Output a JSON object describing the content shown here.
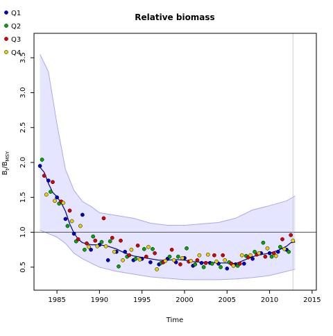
{
  "chart_data": {
    "type": "scatter",
    "title": "Relative biomass",
    "xlabel": "Time",
    "ylabel_main": "B",
    "ylabel_sub_t": "t",
    "ylabel_sub_msy": "MSY",
    "xlim": [
      1982.3,
      2015.5
    ],
    "ylim": [
      0.17,
      3.85
    ],
    "xticks": [
      1985,
      1990,
      1995,
      2000,
      2005,
      2010,
      2015
    ],
    "yticks": [
      0.5,
      1.0,
      1.5,
      2.0,
      2.5,
      3.0,
      3.5
    ],
    "xtick_labels": [
      "1985",
      "1990",
      "1995",
      "2000",
      "2005",
      "2010",
      "2015"
    ],
    "ytick_labels": [
      "0.5",
      "1.0",
      "1.5",
      "2.0",
      "2.5",
      "3.0",
      "3.5"
    ],
    "reference_line_y": 1.0,
    "vertical_line_x": 2012.75,
    "legend_position": "top-left",
    "colors": {
      "Q1": "#0000cc",
      "Q2": "#00aa00",
      "Q3": "#dd0000",
      "Q4": "#e8d000",
      "trend": "#00008b",
      "band_fill": "#e0e0ff",
      "band_edge": "#a8a8f0",
      "refline": "#555555",
      "vline": "#cccccc"
    },
    "series": [
      {
        "name": "Q1",
        "x": [
          1983.0,
          1984.0,
          1985.0,
          1986.0,
          1987.0,
          1988.0,
          1989.0,
          1990.0,
          1991.0,
          1992.0,
          1993.0,
          1994.0,
          1995.0,
          1996.0,
          1997.0,
          1998.0,
          1999.0,
          2000.0,
          2001.0,
          2002.0,
          2003.0,
          2004.0,
          2005.0,
          2006.0,
          2007.0,
          2008.0,
          2009.0,
          2010.0,
          2011.0,
          2012.0
        ],
        "y": [
          1.95,
          1.74,
          1.5,
          1.19,
          0.98,
          1.25,
          0.75,
          0.82,
          0.6,
          0.72,
          0.72,
          0.6,
          0.62,
          0.57,
          0.54,
          0.62,
          0.57,
          0.63,
          0.52,
          0.56,
          0.56,
          0.55,
          0.48,
          0.54,
          0.55,
          0.62,
          0.7,
          0.7,
          0.72,
          0.75
        ]
      },
      {
        "name": "Q2",
        "x": [
          1983.25,
          1984.25,
          1985.25,
          1986.25,
          1987.25,
          1988.25,
          1989.25,
          1990.25,
          1991.25,
          1992.25,
          1993.25,
          1994.25,
          1995.25,
          1996.25,
          1997.25,
          1998.25,
          1999.25,
          2000.25,
          2001.25,
          2002.25,
          2003.25,
          2004.25,
          2005.25,
          2006.25,
          2007.25,
          2008.25,
          2009.25,
          2010.25,
          2011.25,
          2012.25
        ],
        "y": [
          2.04,
          1.58,
          1.41,
          1.09,
          0.87,
          0.75,
          0.94,
          0.86,
          0.87,
          0.51,
          0.65,
          0.62,
          0.76,
          0.76,
          0.56,
          0.65,
          0.65,
          0.77,
          0.54,
          0.5,
          0.55,
          0.5,
          0.57,
          0.52,
          0.66,
          0.72,
          0.85,
          0.65,
          0.79,
          0.72
        ]
      },
      {
        "name": "Q3",
        "x": [
          1983.5,
          1984.5,
          1985.5,
          1986.5,
          1987.5,
          1988.5,
          1989.5,
          1990.5,
          1991.5,
          1992.5,
          1993.5,
          1994.5,
          1995.5,
          1996.5,
          1997.5,
          1998.5,
          1999.5,
          2000.5,
          2001.5,
          2002.5,
          2003.5,
          2004.5,
          2005.5,
          2006.5,
          2007.5,
          2008.5,
          2009.5,
          2010.5,
          2011.5,
          2012.5
        ],
        "y": [
          1.81,
          1.72,
          1.44,
          1.31,
          0.9,
          0.84,
          0.88,
          1.2,
          0.92,
          0.88,
          0.67,
          0.81,
          0.65,
          0.7,
          0.57,
          0.75,
          0.54,
          0.58,
          0.6,
          0.56,
          0.67,
          0.67,
          0.55,
          0.55,
          0.64,
          0.68,
          0.65,
          0.7,
          0.9,
          0.96
        ]
      },
      {
        "name": "Q4",
        "x": [
          1983.75,
          1984.75,
          1985.75,
          1986.75,
          1987.75,
          1988.75,
          1989.75,
          1990.75,
          1991.75,
          1992.75,
          1993.75,
          1994.75,
          1995.75,
          1996.75,
          1997.75,
          1998.75,
          1999.75,
          2000.75,
          2001.75,
          2002.75,
          2003.75,
          2004.75,
          2005.75,
          2006.75,
          2007.75,
          2008.75,
          2009.75,
          2010.75,
          2011.75,
          2012.75
        ],
        "y": [
          1.54,
          1.45,
          1.42,
          1.16,
          1.09,
          0.79,
          0.8,
          0.8,
          0.72,
          0.6,
          0.75,
          0.61,
          0.79,
          0.47,
          0.59,
          0.6,
          0.63,
          0.59,
          0.67,
          0.68,
          0.58,
          0.6,
          0.52,
          0.67,
          0.67,
          0.7,
          0.77,
          0.66,
          0.76,
          0.88
        ]
      },
      {
        "name": "trend",
        "x": [
          1983.0,
          1983.5,
          1984.0,
          1984.5,
          1985.0,
          1985.5,
          1986.0,
          1986.5,
          1987.0,
          1987.5,
          1988.0,
          1989.0,
          1990.0,
          1991.0,
          1992.0,
          1993.0,
          1994.0,
          1995.0,
          1996.0,
          1997.0,
          1998.0,
          1999.0,
          2000.0,
          2001.0,
          2002.0,
          2003.0,
          2004.0,
          2005.0,
          2006.0,
          2007.0,
          2008.0,
          2009.0,
          2010.0,
          2011.0,
          2012.0,
          2012.5,
          2013.0
        ],
        "y": [
          1.93,
          1.86,
          1.7,
          1.57,
          1.51,
          1.42,
          1.3,
          1.12,
          0.99,
          0.9,
          0.85,
          0.82,
          0.82,
          0.8,
          0.76,
          0.7,
          0.66,
          0.64,
          0.62,
          0.6,
          0.6,
          0.61,
          0.6,
          0.58,
          0.57,
          0.57,
          0.56,
          0.56,
          0.55,
          0.6,
          0.65,
          0.68,
          0.7,
          0.74,
          0.8,
          0.85,
          0.86
        ]
      },
      {
        "name": "band_upper",
        "x": [
          1983.0,
          1984.0,
          1985.0,
          1986.0,
          1987.0,
          1988.0,
          1989.0,
          1990.0,
          1992.0,
          1994.0,
          1996.0,
          1998.0,
          2000.0,
          2002.0,
          2004.0,
          2006.0,
          2008.0,
          2010.0,
          2012.0,
          2013.0
        ],
        "y": [
          3.55,
          3.3,
          2.55,
          1.9,
          1.6,
          1.44,
          1.37,
          1.28,
          1.24,
          1.2,
          1.13,
          1.1,
          1.1,
          1.12,
          1.14,
          1.2,
          1.32,
          1.38,
          1.45,
          1.52
        ]
      },
      {
        "name": "band_lower",
        "x": [
          1983.0,
          1984.0,
          1985.0,
          1986.0,
          1987.0,
          1988.0,
          1989.0,
          1990.0,
          1992.0,
          1994.0,
          1996.0,
          1998.0,
          2000.0,
          2002.0,
          2004.0,
          2006.0,
          2008.0,
          2010.0,
          2012.0,
          2013.0
        ],
        "y": [
          1.03,
          0.98,
          0.93,
          0.84,
          0.7,
          0.62,
          0.56,
          0.5,
          0.44,
          0.4,
          0.36,
          0.34,
          0.32,
          0.32,
          0.32,
          0.33,
          0.35,
          0.38,
          0.44,
          0.47
        ]
      }
    ]
  }
}
